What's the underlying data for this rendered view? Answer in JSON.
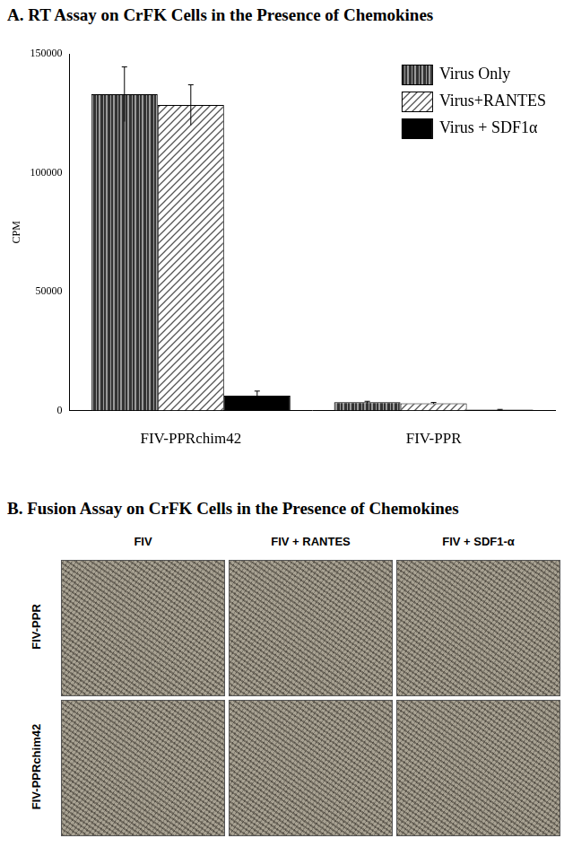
{
  "chart_data": {
    "type": "bar",
    "title": "A. RT Assay on CrFK Cells in the Presence of Chemokines",
    "y_label": "CPM",
    "categories": [
      "FIV-PPRchim42",
      "FIV-PPR"
    ],
    "series": [
      {
        "name": "Virus Only",
        "color": "#333333",
        "values": [
          133000,
          3500
        ],
        "errors": [
          11500,
          400
        ]
      },
      {
        "name": "Virus+RANTES",
        "color": "#555555",
        "values": [
          128500,
          3100
        ],
        "errors": [
          8500,
          300
        ]
      },
      {
        "name": "Virus + SDF1α",
        "color": "#000000",
        "values": [
          6300,
          400
        ],
        "errors": [
          1900,
          100
        ]
      }
    ],
    "ylim": [
      0,
      150000
    ],
    "yticks": [
      0,
      50000,
      100000,
      150000
    ],
    "grid": false,
    "legend": "upper right"
  },
  "panel_b": {
    "title": "B. Fusion Assay on CrFK Cells in the Presence of Chemokines",
    "columns": [
      "FIV",
      "FIV + RANTES",
      "FIV + SDF1-α"
    ],
    "rows": [
      "FIV-PPR",
      "FIV-PPRchim42"
    ]
  }
}
